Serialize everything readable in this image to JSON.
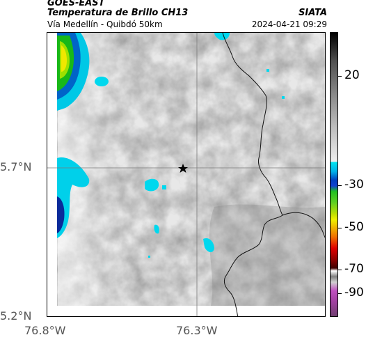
{
  "header": {
    "satellite": "GOES-EAST",
    "product": "Temperatura de Brillo CH13",
    "region": "Vía Medellín - Quibdó 50km",
    "org": "SIATA",
    "datetime": "2024-04-21 09:29"
  },
  "axes": {
    "lat_labels": [
      "5.7°N",
      "5.2°N"
    ],
    "lon_labels": [
      "76.8°W",
      "76.3°W"
    ]
  },
  "colorbar": {
    "labels": [
      "20",
      "-30",
      "-50",
      "-70",
      "-90"
    ],
    "colors": {
      "top_black": "#000000",
      "gray_mid": "#a8a8a8",
      "white": "#f2f2f2",
      "cyan": "#00e5f0",
      "blue": "#0040c0",
      "green": "#20c020",
      "yellow": "#f0f000",
      "orange": "#f07000",
      "red": "#e00000",
      "dark_red": "#600000",
      "magenta": "#c050c0"
    }
  },
  "map": {
    "marker_icon": "star-icon",
    "marker_label": ""
  }
}
